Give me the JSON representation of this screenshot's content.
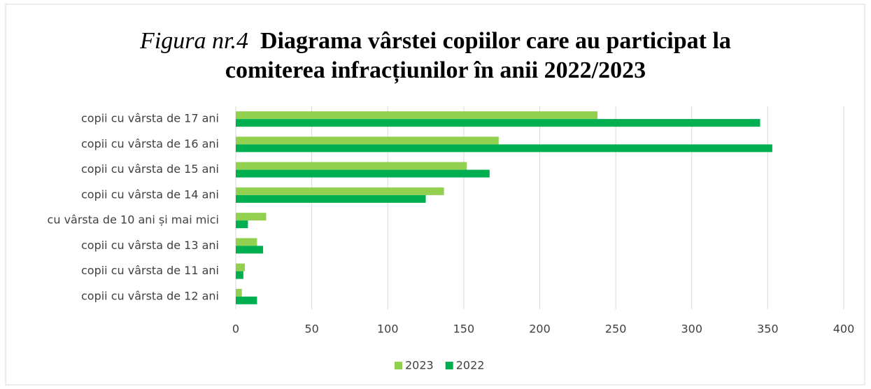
{
  "chart_data": {
    "type": "hbar",
    "title_label": "Figura nr.4",
    "title": "Diagrama vârstei copiilor care au participat la comiterea infracțiunilor în anii 2022/2023",
    "categories": [
      "copii cu vârsta de 17 ani",
      "copii cu vârsta de 16 ani",
      "copii cu vârsta de 15 ani",
      "copii cu vârsta de 14 ani",
      "cu vârsta de 10 ani și mai mici",
      "copii cu vârsta de 13 ani",
      "copii cu vârsta de 11 ani",
      "copii cu vârsta de 12 ani"
    ],
    "series": [
      {
        "name": "2023",
        "color": "#92d050",
        "values": [
          238,
          173,
          152,
          137,
          20,
          14,
          6,
          4
        ]
      },
      {
        "name": "2022",
        "color": "#00b050",
        "values": [
          345,
          353,
          167,
          125,
          8,
          18,
          5,
          14
        ]
      }
    ],
    "xlim": [
      0,
      400
    ],
    "xticks": [
      0,
      50,
      100,
      150,
      200,
      250,
      300,
      350,
      400
    ],
    "grid": true,
    "legend": "bottom"
  }
}
